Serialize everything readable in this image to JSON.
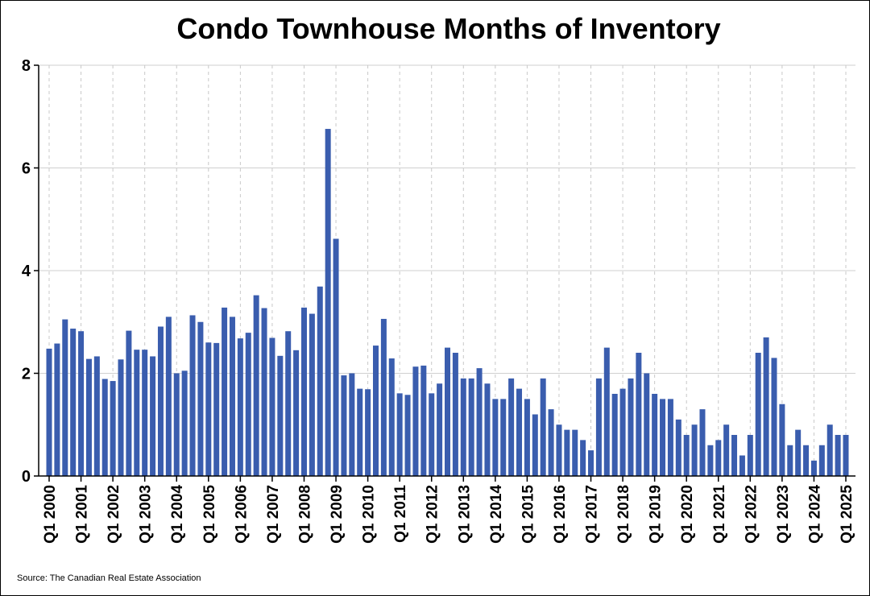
{
  "chart_data": {
    "type": "bar",
    "title": "Condo Townhouse Months of Inventory",
    "source": "Source: The Canadian Real Estate Association",
    "xlabel": "",
    "ylabel": "",
    "ylim": [
      0,
      8
    ],
    "yticks": [
      0,
      2,
      4,
      6,
      8
    ],
    "grid": true,
    "bar_color": "#3A5DAE",
    "x_tick_labels": [
      "Q1 2000",
      "Q1 2001",
      "Q1 2002",
      "Q1 2003",
      "Q1 2004",
      "Q1 2005",
      "Q1 2006",
      "Q1 2007",
      "Q1 2008",
      "Q1 2009",
      "Q1 2010",
      "Q1 2011",
      "Q1 2012",
      "Q1 2013",
      "Q1 2014",
      "Q1 2015",
      "Q1 2016",
      "Q1 2017",
      "Q1 2018",
      "Q1 2019",
      "Q1 2020",
      "Q1 2021",
      "Q1 2022",
      "Q1 2023",
      "Q1 2024",
      "Q1 2025"
    ],
    "values": [
      2.48,
      2.58,
      3.05,
      2.87,
      2.82,
      2.28,
      2.33,
      1.89,
      1.85,
      2.27,
      2.83,
      2.46,
      2.46,
      2.33,
      2.91,
      3.1,
      2.0,
      2.05,
      3.13,
      3.0,
      2.6,
      2.59,
      3.28,
      3.1,
      2.68,
      2.79,
      3.52,
      3.27,
      2.69,
      2.34,
      2.82,
      2.45,
      3.28,
      3.16,
      3.69,
      6.76,
      4.62,
      1.96,
      2.0,
      1.7,
      1.69,
      2.54,
      3.06,
      2.29,
      1.61,
      1.58,
      2.13,
      2.15,
      1.61,
      1.8,
      2.5,
      2.4,
      1.9,
      1.9,
      2.1,
      1.8,
      1.5,
      1.5,
      1.9,
      1.7,
      1.5,
      1.2,
      1.9,
      1.3,
      1.0,
      0.9,
      0.9,
      0.7,
      0.5,
      1.9,
      2.5,
      1.6,
      1.7,
      1.9,
      2.4,
      2.0,
      1.6,
      1.5,
      1.5,
      1.1,
      0.8,
      1.0,
      1.3,
      0.6,
      0.7,
      1.0,
      0.8,
      0.4,
      0.8,
      2.4,
      2.7,
      2.3,
      1.4,
      0.6,
      0.9,
      0.6,
      0.3,
      0.6,
      1.0,
      0.8,
      0.8
    ]
  }
}
